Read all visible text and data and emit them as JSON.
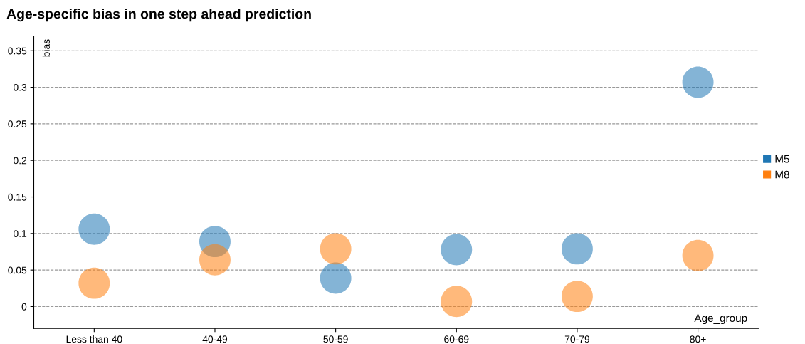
{
  "chart_data": {
    "type": "scatter",
    "title": "Age-specific bias in one step ahead prediction",
    "xlabel": "Age_group",
    "ylabel": "bias",
    "categories": [
      "Less than 40",
      "40-49",
      "50-59",
      "60-69",
      "70-79",
      "80+"
    ],
    "series": [
      {
        "name": "M5",
        "color": "#1f77b4",
        "values": [
          0.106,
          0.089,
          0.039,
          0.078,
          0.079,
          0.307
        ]
      },
      {
        "name": "M8",
        "color": "#ff7f0e",
        "values": [
          0.032,
          0.064,
          0.079,
          0.007,
          0.014,
          0.07
        ]
      }
    ],
    "ylim": [
      -0.03,
      0.37
    ],
    "yticks": [
      0,
      0.05,
      0.1,
      0.15,
      0.2,
      0.25,
      0.3,
      0.35
    ],
    "grid": "y",
    "legend": "right",
    "marker": "circle"
  }
}
